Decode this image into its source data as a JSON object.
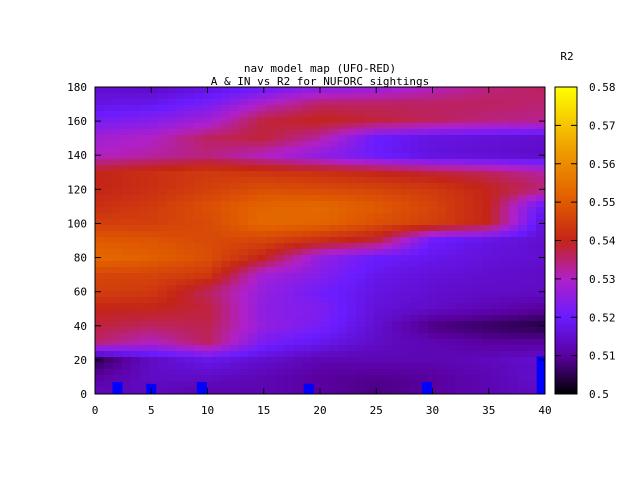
{
  "chart_data": {
    "type": "heatmap",
    "title": "nav model map (UFO-RED)",
    "subtitle": "A & IN vs R2 for NUFORC sightings",
    "xlabel": "",
    "ylabel": "",
    "xlim": [
      0,
      40
    ],
    "ylim": [
      0,
      180
    ],
    "x_ticks": [
      "0",
      "5",
      "10",
      "15",
      "20",
      "25",
      "30",
      "35",
      "40"
    ],
    "y_ticks": [
      "0",
      "20",
      "40",
      "60",
      "80",
      "100",
      "120",
      "140",
      "160",
      "180"
    ],
    "colorbar": {
      "label": "R2",
      "range": [
        0.5,
        0.58
      ],
      "ticks": [
        "0.5",
        "0.51",
        "0.52",
        "0.53",
        "0.54",
        "0.55",
        "0.56",
        "0.57",
        "0.58"
      ],
      "palette": [
        "#000000",
        "#5a00a0",
        "#6a1cff",
        "#b020c8",
        "#c42418",
        "#e05a00",
        "#f0a000",
        "#ffff00"
      ]
    },
    "grid": false,
    "x_centers": [
      0,
      5,
      10,
      15,
      20,
      25,
      30,
      35,
      40
    ],
    "y_centers": [
      0,
      10,
      20,
      30,
      40,
      50,
      60,
      70,
      80,
      90,
      100,
      110,
      120,
      130,
      140,
      150,
      160,
      170,
      180
    ],
    "z": [
      [
        0.513,
        0.513,
        0.511,
        0.512,
        0.51,
        0.508,
        0.51,
        0.512,
        0.514
      ],
      [
        0.51,
        0.514,
        0.514,
        0.512,
        0.51,
        0.509,
        0.51,
        0.512,
        0.515
      ],
      [
        0.505,
        0.514,
        0.518,
        0.515,
        0.512,
        0.512,
        0.512,
        0.513,
        0.515
      ],
      [
        0.535,
        0.53,
        0.536,
        0.522,
        0.518,
        0.514,
        0.512,
        0.51,
        0.51
      ],
      [
        0.538,
        0.536,
        0.537,
        0.526,
        0.522,
        0.515,
        0.508,
        0.506,
        0.504
      ],
      [
        0.54,
        0.54,
        0.538,
        0.525,
        0.523,
        0.516,
        0.514,
        0.512,
        0.51
      ],
      [
        0.545,
        0.544,
        0.536,
        0.526,
        0.521,
        0.517,
        0.515,
        0.514,
        0.514
      ],
      [
        0.546,
        0.546,
        0.544,
        0.528,
        0.524,
        0.518,
        0.516,
        0.515,
        0.514
      ],
      [
        0.553,
        0.551,
        0.548,
        0.54,
        0.526,
        0.52,
        0.518,
        0.516,
        0.515
      ],
      [
        0.55,
        0.549,
        0.547,
        0.546,
        0.542,
        0.538,
        0.52,
        0.517,
        0.515
      ],
      [
        0.545,
        0.545,
        0.547,
        0.553,
        0.552,
        0.548,
        0.545,
        0.54,
        0.515
      ],
      [
        0.542,
        0.544,
        0.548,
        0.552,
        0.553,
        0.55,
        0.546,
        0.54,
        0.518
      ],
      [
        0.54,
        0.542,
        0.545,
        0.548,
        0.547,
        0.546,
        0.544,
        0.54,
        0.535
      ],
      [
        0.54,
        0.542,
        0.544,
        0.543,
        0.542,
        0.54,
        0.538,
        0.536,
        0.532
      ],
      [
        0.53,
        0.532,
        0.534,
        0.53,
        0.525,
        0.52,
        0.516,
        0.515,
        0.514
      ],
      [
        0.528,
        0.53,
        0.536,
        0.538,
        0.532,
        0.52,
        0.517,
        0.516,
        0.515
      ],
      [
        0.522,
        0.524,
        0.528,
        0.538,
        0.54,
        0.538,
        0.536,
        0.534,
        0.533
      ],
      [
        0.517,
        0.518,
        0.522,
        0.53,
        0.536,
        0.536,
        0.536,
        0.536,
        0.535
      ],
      [
        0.515,
        0.514,
        0.516,
        0.52,
        0.524,
        0.526,
        0.53,
        0.534,
        0.536
      ]
    ],
    "overlay_bars": {
      "color": "#0000ff",
      "x": [
        2,
        5,
        9.5,
        19,
        29.5,
        39.7
      ],
      "y": [
        7,
        6,
        7,
        6,
        7,
        22
      ]
    }
  }
}
